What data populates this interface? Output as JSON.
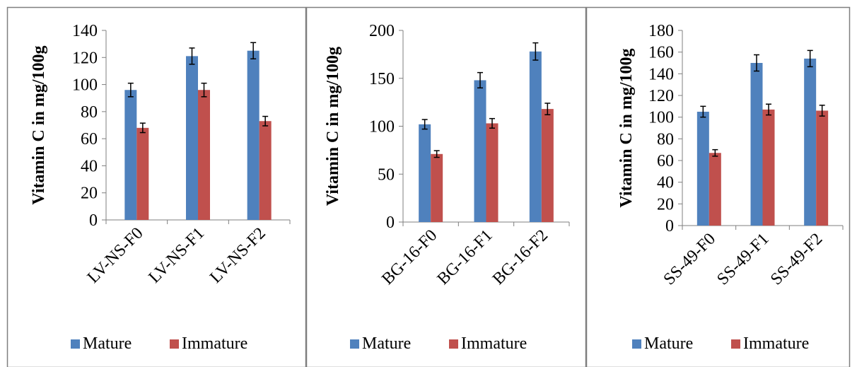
{
  "legend": {
    "mature_label": "Mature",
    "immature_label": "Immature"
  },
  "colors": {
    "mature": "#4f81bd",
    "immature": "#c0504d",
    "frame": "#7f7f7f",
    "axis": "#7f7f7f"
  },
  "chart_data": [
    {
      "type": "bar",
      "ylabel": "Vitamin C in mg/100g",
      "xlabel": "",
      "categories": [
        "LV-NS-F0",
        "LV-NS-F1",
        "LV-NS-F2"
      ],
      "ylim": [
        0,
        140
      ],
      "yticks": [
        "0",
        "20",
        "40",
        "60",
        "80",
        "100",
        "120",
        "140"
      ],
      "grid": false,
      "legend_position": "bottom",
      "series": [
        {
          "name": "Mature",
          "values": [
            96,
            121,
            125
          ],
          "errors": [
            5,
            6,
            6
          ]
        },
        {
          "name": "Immature",
          "values": [
            68,
            96,
            73
          ],
          "errors": [
            3.5,
            5,
            3.5
          ]
        }
      ]
    },
    {
      "type": "bar",
      "ylabel": "Vitamin C in mg/100g",
      "xlabel": "",
      "categories": [
        "BG-16-F0",
        "BG-16-F1",
        "BG-16-F2"
      ],
      "ylim": [
        0,
        200
      ],
      "yticks": [
        "0",
        "50",
        "100",
        "150",
        "200"
      ],
      "grid": false,
      "legend_position": "bottom",
      "series": [
        {
          "name": "Mature",
          "values": [
            102,
            148,
            178
          ],
          "errors": [
            5,
            8,
            9
          ]
        },
        {
          "name": "Immature",
          "values": [
            71,
            103,
            118
          ],
          "errors": [
            3.5,
            5,
            6
          ]
        }
      ]
    },
    {
      "type": "bar",
      "ylabel": "Vitamin C in mg/100g",
      "xlabel": "",
      "categories": [
        "SS-49-F0",
        "SS-49-F1",
        "SS-49-F2"
      ],
      "ylim": [
        0,
        180
      ],
      "yticks": [
        "0",
        "20",
        "40",
        "60",
        "80",
        "100",
        "120",
        "140",
        "160",
        "180"
      ],
      "grid": false,
      "legend_position": "bottom",
      "series": [
        {
          "name": "Mature",
          "values": [
            105,
            150,
            154
          ],
          "errors": [
            5,
            7.5,
            7.5
          ]
        },
        {
          "name": "Immature",
          "values": [
            67,
            107,
            106
          ],
          "errors": [
            3,
            5,
            5
          ]
        }
      ]
    }
  ]
}
